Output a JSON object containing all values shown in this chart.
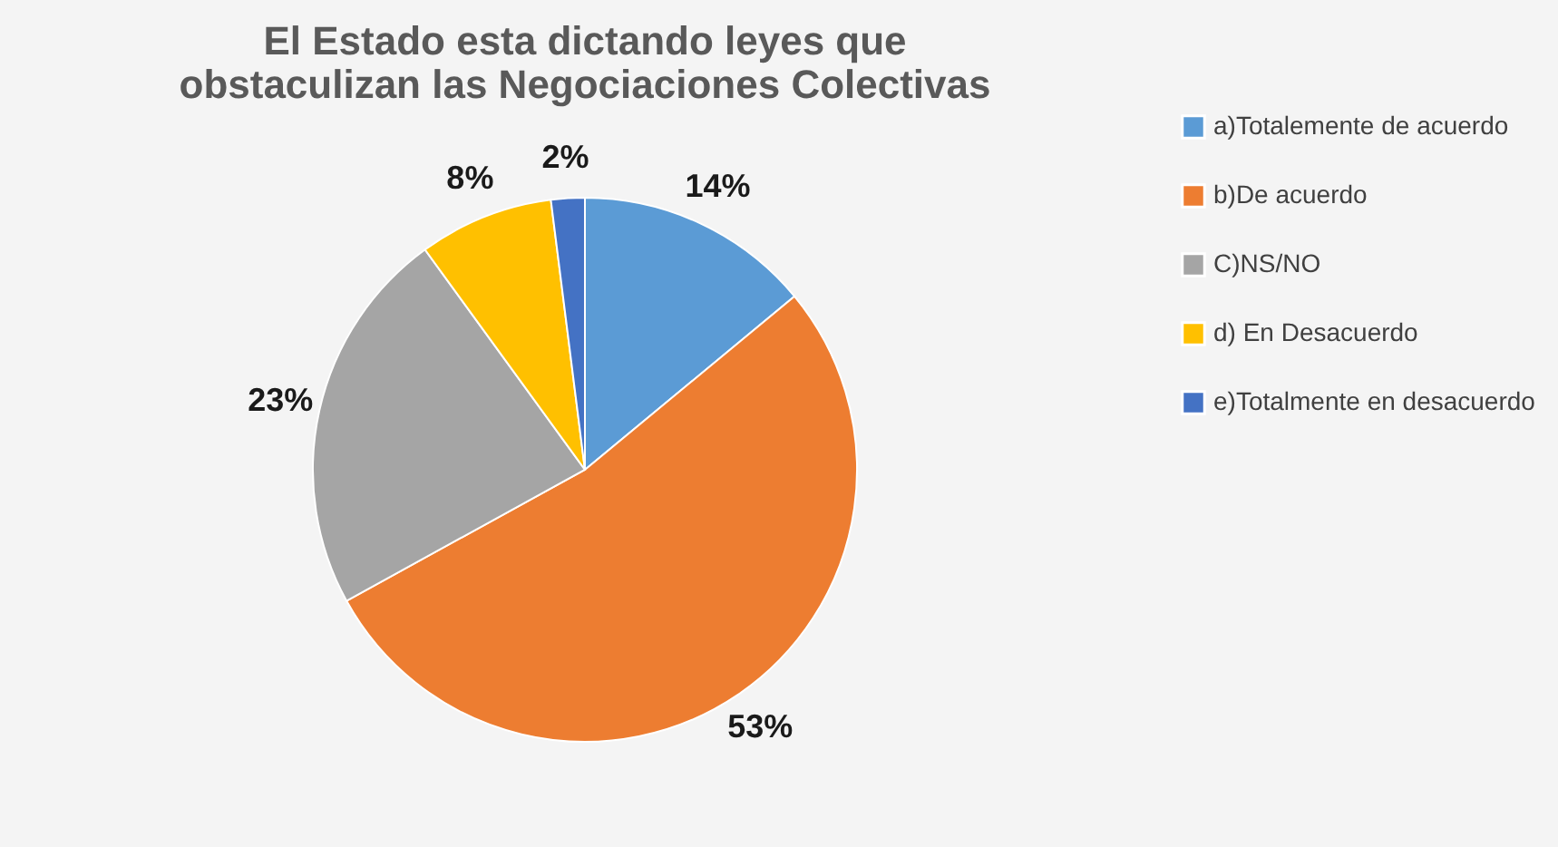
{
  "chart_data": {
    "type": "pie",
    "title": "El Estado esta dictando leyes que obstaculizan las Negociaciones Colectivas",
    "categories": [
      "a)Totalemente de acuerdo",
      "b)De acuerdo",
      "C)NS/NO",
      "d) En Desacuerdo",
      "e)Totalmente en desacuerdo"
    ],
    "values": [
      14,
      53,
      23,
      8,
      2
    ],
    "colors": [
      "#5b9bd5",
      "#ed7d31",
      "#a5a5a5",
      "#ffc000",
      "#4472c4"
    ],
    "value_labels": [
      "14%",
      "53%",
      "23%",
      "8%",
      "2%"
    ],
    "legend": "right"
  }
}
